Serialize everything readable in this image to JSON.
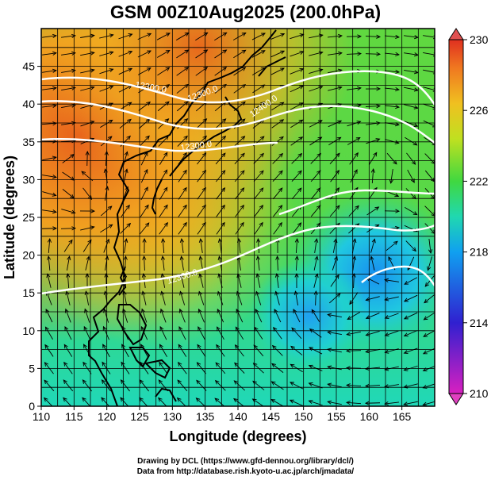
{
  "title": "GSM 00Z10Aug2025 (200.0hPa)",
  "x_axis": {
    "label": "Longitude (degrees)",
    "ticks": [
      "110",
      "115",
      "120",
      "125",
      "130",
      "135",
      "140",
      "145",
      "150",
      "155",
      "160",
      "165"
    ],
    "range": [
      110,
      170
    ]
  },
  "y_axis": {
    "label": "Latitude  (degrees)",
    "ticks": [
      "0",
      "5",
      "10",
      "15",
      "20",
      "25",
      "30",
      "35",
      "40",
      "45"
    ],
    "range": [
      0,
      50
    ]
  },
  "colorbar": {
    "ticks": [
      "210",
      "214",
      "218",
      "222",
      "226",
      "230"
    ],
    "range": [
      210,
      230
    ],
    "colors": [
      "#d020c0",
      "#2020d0",
      "#10a8f0",
      "#20d8b0",
      "#40d840",
      "#c0e020",
      "#f0c020",
      "#f07820",
      "#e03020"
    ]
  },
  "contour_labels": [
    "12300.0",
    "12300.0",
    "12400.0",
    "12300.0",
    "12300.0"
  ],
  "credits": {
    "line1": "Drawing by DCL (https://www.gfd-dennou.org/library/dcl/)",
    "line2": "Data from http://database.rish.kyoto-u.ac.jp/arch/jmadata/"
  }
}
